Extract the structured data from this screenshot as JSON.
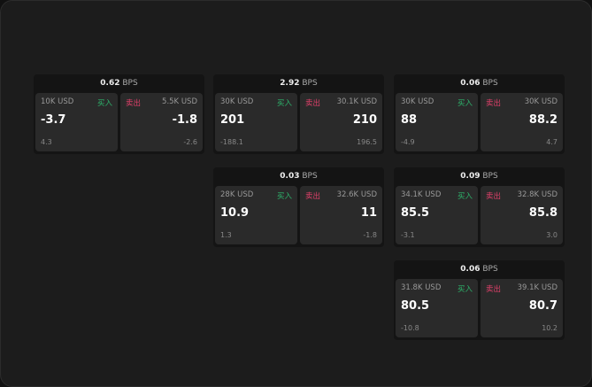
{
  "unit": "BPS",
  "buy_label": "买入",
  "sell_label": "卖出",
  "colors": {
    "buy": "#2db36b",
    "sell": "#e0406a"
  },
  "panels": [
    {
      "spread": "0.62",
      "bid": {
        "size": "10K USD",
        "price": "-3.7",
        "change": "4.3"
      },
      "ask": {
        "size": "5.5K USD",
        "price": "-1.8",
        "change": "-2.6"
      }
    },
    {
      "spread": "2.92",
      "bid": {
        "size": "30K USD",
        "price": "201",
        "change": "-188.1"
      },
      "ask": {
        "size": "30.1K USD",
        "price": "210",
        "change": "196.5"
      }
    },
    {
      "spread": "0.06",
      "bid": {
        "size": "30K USD",
        "price": "88",
        "change": "-4.9"
      },
      "ask": {
        "size": "30K USD",
        "price": "88.2",
        "change": "4.7"
      }
    },
    {
      "spread": "0.03",
      "bid": {
        "size": "28K USD",
        "price": "10.9",
        "change": "1.3"
      },
      "ask": {
        "size": "32.6K USD",
        "price": "11",
        "change": "-1.8"
      }
    },
    {
      "spread": "0.09",
      "bid": {
        "size": "34.1K USD",
        "price": "85.5",
        "change": "-3.1"
      },
      "ask": {
        "size": "32.8K USD",
        "price": "85.8",
        "change": "3.0"
      }
    },
    {
      "spread": "0.06",
      "bid": {
        "size": "31.8K USD",
        "price": "80.5",
        "change": "-10.8"
      },
      "ask": {
        "size": "39.1K USD",
        "price": "80.7",
        "change": "10.2"
      }
    }
  ]
}
